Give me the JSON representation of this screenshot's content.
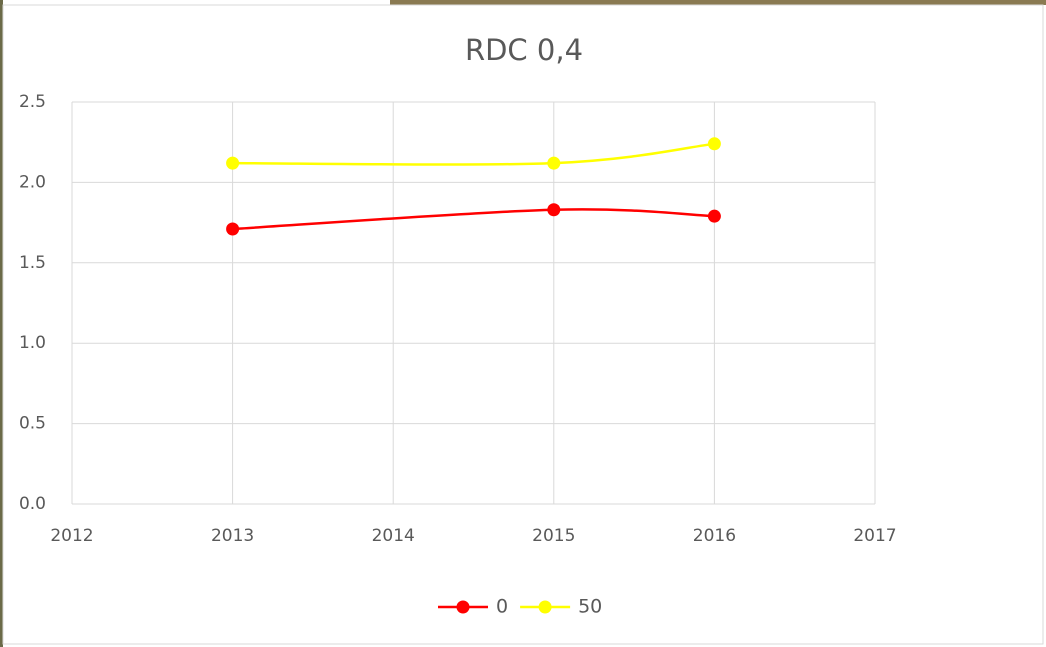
{
  "chart_data": {
    "type": "line",
    "title": "RDC 0,4",
    "series": [
      {
        "name": "0",
        "color": "#ff0000",
        "x": [
          2013,
          2015,
          2016
        ],
        "values": [
          1.71,
          1.83,
          1.79
        ]
      },
      {
        "name": "50",
        "color": "#ffff00",
        "x": [
          2013,
          2015,
          2016
        ],
        "values": [
          2.12,
          2.12,
          2.24
        ]
      }
    ],
    "xlim": [
      2012,
      2017
    ],
    "xticks": [
      2012,
      2013,
      2014,
      2015,
      2016,
      2017
    ],
    "ylim": [
      0,
      2.5
    ],
    "yticks": [
      {
        "value": 0,
        "label": "0.0"
      },
      0.5,
      {
        "value": 1,
        "label": "1.0"
      },
      1.5,
      {
        "value": 2,
        "label": "2.0"
      },
      2.5
    ],
    "grid": true,
    "smooth": true,
    "legend": "bottom"
  }
}
